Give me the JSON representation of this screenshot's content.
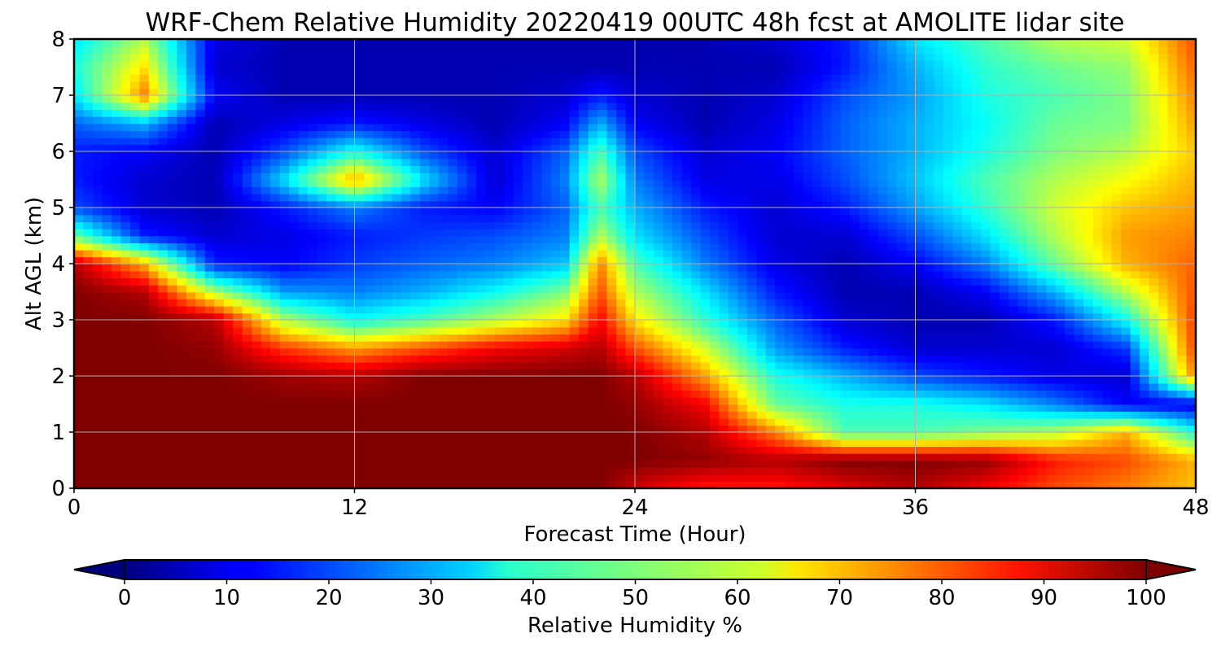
{
  "chart_data": {
    "type": "heatmap",
    "title": "WRF-Chem Relative Humidity 20220419 00UTC 48h fcst at AMOLITE lidar site",
    "xlabel": "Forecast Time (Hour)",
    "ylabel": "Alt AGL (km)",
    "xlim": [
      0,
      48
    ],
    "ylim": [
      0,
      8
    ],
    "xticks": [
      0,
      12,
      24,
      36,
      48
    ],
    "yticks": [
      0,
      1,
      2,
      3,
      4,
      5,
      6,
      7,
      8
    ],
    "grid": true,
    "colormap": "jet",
    "colorbar": {
      "label": "Relative Humidity %",
      "ticks": [
        0,
        10,
        20,
        30,
        40,
        50,
        60,
        70,
        80,
        90,
        100
      ],
      "range": [
        0,
        100
      ],
      "extend": "both",
      "orientation": "horizontal"
    },
    "x": [
      0,
      3,
      6,
      9,
      12,
      15,
      18,
      21,
      22.5,
      24,
      27,
      30,
      33,
      36,
      39,
      42,
      45,
      48
    ],
    "y": [
      0,
      0.5,
      1,
      1.5,
      2,
      2.5,
      3,
      3.5,
      4,
      4.5,
      5,
      5.5,
      6,
      6.5,
      7,
      7.5,
      8
    ],
    "z": [
      [
        100,
        100,
        100,
        100,
        100,
        100,
        100,
        100,
        100,
        92,
        85,
        85,
        90,
        95,
        88,
        80,
        75,
        68
      ],
      [
        100,
        100,
        100,
        100,
        100,
        100,
        100,
        100,
        100,
        100,
        98,
        95,
        100,
        100,
        98,
        85,
        80,
        70
      ],
      [
        100,
        100,
        100,
        100,
        100,
        100,
        100,
        100,
        100,
        100,
        95,
        75,
        45,
        45,
        50,
        55,
        70,
        40
      ],
      [
        100,
        100,
        100,
        100,
        100,
        100,
        100,
        100,
        100,
        98,
        88,
        48,
        40,
        40,
        35,
        25,
        12,
        10
      ],
      [
        100,
        100,
        100,
        97,
        95,
        100,
        100,
        100,
        100,
        95,
        72,
        40,
        30,
        20,
        15,
        10,
        8,
        75
      ],
      [
        100,
        100,
        98,
        82,
        72,
        80,
        88,
        92,
        95,
        80,
        58,
        28,
        15,
        8,
        8,
        8,
        18,
        82
      ],
      [
        100,
        100,
        95,
        55,
        38,
        45,
        55,
        65,
        88,
        65,
        42,
        22,
        8,
        5,
        5,
        15,
        38,
        82
      ],
      [
        100,
        95,
        55,
        28,
        25,
        30,
        38,
        50,
        80,
        55,
        35,
        15,
        5,
        5,
        12,
        30,
        55,
        80
      ],
      [
        95,
        70,
        15,
        12,
        18,
        22,
        25,
        32,
        75,
        45,
        25,
        10,
        5,
        12,
        25,
        48,
        70,
        78
      ],
      [
        48,
        15,
        8,
        10,
        15,
        18,
        20,
        25,
        55,
        35,
        20,
        8,
        8,
        20,
        35,
        55,
        72,
        75
      ],
      [
        20,
        8,
        5,
        15,
        25,
        15,
        12,
        22,
        45,
        30,
        15,
        8,
        15,
        28,
        42,
        58,
        68,
        72
      ],
      [
        15,
        8,
        5,
        35,
        72,
        35,
        8,
        25,
        55,
        25,
        10,
        10,
        20,
        32,
        45,
        55,
        62,
        70
      ],
      [
        15,
        12,
        5,
        20,
        40,
        20,
        8,
        22,
        45,
        20,
        8,
        12,
        22,
        30,
        40,
        50,
        55,
        68
      ],
      [
        22,
        30,
        5,
        10,
        15,
        10,
        5,
        12,
        30,
        12,
        5,
        10,
        22,
        30,
        38,
        48,
        50,
        72
      ],
      [
        35,
        75,
        12,
        5,
        5,
        5,
        5,
        8,
        15,
        8,
        5,
        8,
        20,
        28,
        40,
        45,
        50,
        75
      ],
      [
        40,
        65,
        8,
        5,
        5,
        5,
        5,
        5,
        5,
        5,
        5,
        5,
        15,
        30,
        42,
        48,
        52,
        78
      ],
      [
        35,
        55,
        10,
        5,
        5,
        5,
        5,
        5,
        5,
        5,
        5,
        8,
        15,
        35,
        45,
        55,
        58,
        80
      ]
    ]
  }
}
